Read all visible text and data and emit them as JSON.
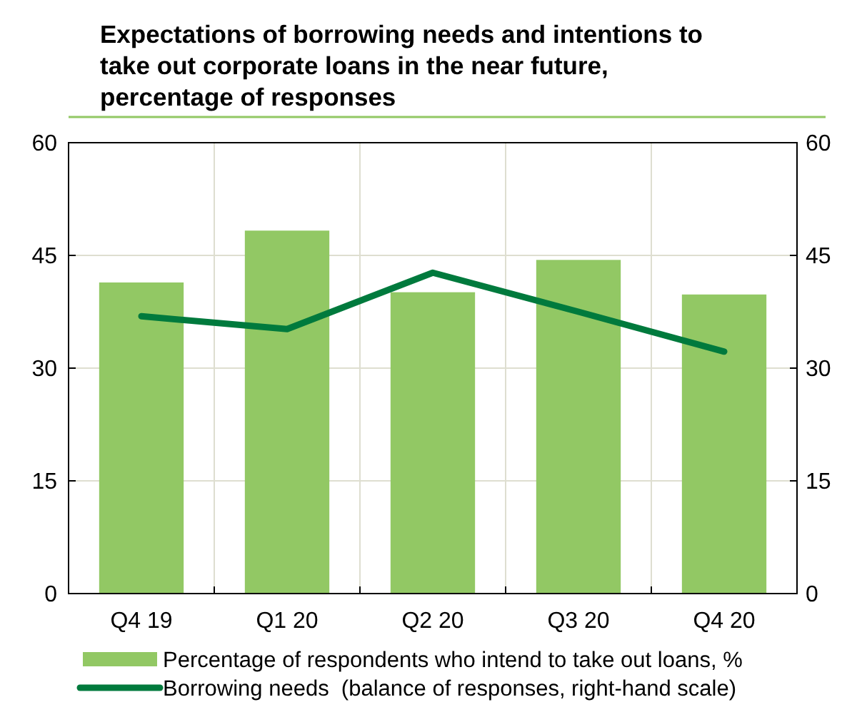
{
  "chart_data": {
    "type": "bar",
    "title": "Expectations of borrowing needs and intentions to take out corporate loans in the near future, percentage of responses",
    "categories": [
      "Q4 19",
      "Q1 20",
      "Q2 20",
      "Q3 20",
      "Q4 20"
    ],
    "series": [
      {
        "name": "Percentage of respondents who intend to take out loans, %",
        "color": "#92c864",
        "values": [
          41.4,
          48.3,
          40.1,
          44.4,
          39.8
        ]
      },
      {
        "name": "Borrowing needs  (balance of responses, right-hand scale)",
        "type": "line",
        "axis": "y2",
        "color": "#007a3d",
        "values": [
          36.9,
          35.2,
          42.7,
          37.5,
          32.2
        ]
      }
    ],
    "ylim": [
      0,
      60
    ],
    "yticks": [
      0,
      15,
      30,
      45,
      60
    ],
    "y2lim": [
      0,
      60
    ],
    "y2ticks": [
      0,
      15,
      30,
      45,
      60
    ],
    "grid": true,
    "legend": "bottom"
  }
}
